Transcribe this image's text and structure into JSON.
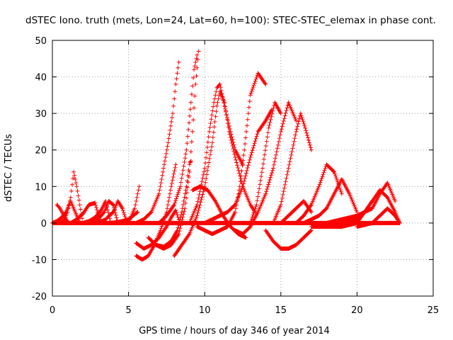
{
  "chart_data": {
    "type": "scatter",
    "title": "dSTEC Iono. truth (mets, Lon=24, Lat=60, h=100): STEC-STEC_elemax in phase cont.",
    "xlabel": "GPS time / hours of day 346 of year 2014",
    "ylabel": "dSTEC  / TECUs",
    "xlim": [
      0,
      25
    ],
    "ylim": [
      -20,
      50
    ],
    "x_ticks": [
      0,
      5,
      10,
      15,
      20,
      25
    ],
    "y_ticks": [
      -20,
      -10,
      0,
      10,
      20,
      30,
      40,
      50
    ],
    "x_tick_labels": [
      "0",
      "5",
      "10",
      "15",
      "20",
      "25"
    ],
    "y_tick_labels": [
      "-20",
      "-10",
      "0",
      "10",
      "20",
      "30",
      "40",
      "50"
    ],
    "grid": true,
    "marker": "+",
    "color": "#ff0000",
    "series": [
      {
        "x": [
          0.0,
          0.3,
          0.6,
          0.9,
          1.2,
          1.5,
          1.8
        ],
        "y": [
          0,
          0.5,
          1.5,
          3,
          6,
          3,
          0
        ]
      },
      {
        "x": [
          0.5,
          0.8,
          1.0,
          1.2,
          1.4,
          1.6,
          1.8,
          2.0
        ],
        "y": [
          0,
          1,
          3,
          7,
          14,
          10,
          5,
          0
        ]
      },
      {
        "x": [
          0.3,
          0.5,
          0.7,
          0.9,
          1.1
        ],
        "y": [
          5,
          4,
          2.5,
          1,
          0
        ]
      },
      {
        "x": [
          1.2,
          1.6,
          2.0,
          2.4,
          2.8,
          3.1
        ],
        "y": [
          0,
          1,
          2.5,
          5,
          5.5,
          1
        ]
      },
      {
        "x": [
          2.0,
          2.4,
          2.8,
          3.2,
          3.5,
          3.8
        ],
        "y": [
          0,
          0.5,
          1.5,
          3.5,
          6,
          0.5
        ]
      },
      {
        "x": [
          2.6,
          3.0,
          3.4,
          3.7,
          4.0,
          4.3
        ],
        "y": [
          0,
          1,
          3,
          6,
          5,
          0
        ]
      },
      {
        "x": [
          3.0,
          3.5,
          4.0,
          4.3,
          4.6,
          4.9
        ],
        "y": [
          0,
          1,
          3,
          6,
          4,
          0
        ]
      },
      {
        "x": [
          4.5,
          4.8,
          5.1,
          5.4,
          5.6,
          5.7
        ],
        "y": [
          0,
          0.3,
          1,
          4,
          8,
          10
        ]
      },
      {
        "x": [
          3.8,
          4.2,
          4.6,
          5.0,
          5.3,
          5.6
        ],
        "y": [
          0,
          0.2,
          0.5,
          1,
          2,
          3
        ]
      },
      {
        "x": [
          5.5,
          6.0,
          6.5,
          7.0,
          7.5,
          7.8,
          8.1,
          8.3
        ],
        "y": [
          -5.5,
          -7,
          -6,
          -4,
          -1,
          1.5,
          3.5,
          1
        ]
      },
      {
        "x": [
          5.5,
          5.9,
          6.3,
          6.7,
          7.1,
          7.5,
          7.8,
          8.1
        ],
        "y": [
          -9,
          -10,
          -9,
          -6,
          -2,
          3,
          10,
          16
        ]
      },
      {
        "x": [
          5.5,
          6.0,
          6.5,
          7.0,
          7.3,
          7.6,
          7.9,
          8.1,
          8.3
        ],
        "y": [
          0,
          1,
          3,
          8,
          15,
          22,
          30,
          38,
          44
        ]
      },
      {
        "x": [
          6.3,
          6.8,
          7.3,
          7.8,
          8.3,
          8.7,
          9.0,
          9.2,
          9.4,
          9.6
        ],
        "y": [
          -4,
          -6,
          -7,
          -6,
          -3,
          4,
          14,
          25,
          38,
          47
        ]
      },
      {
        "x": [
          6.8,
          7.3,
          7.8,
          8.2,
          8.5,
          8.8,
          9.0,
          9.1
        ],
        "y": [
          -6,
          -6.5,
          -5,
          -2,
          3,
          10,
          16,
          17
        ]
      },
      {
        "x": [
          7.0,
          7.5,
          8.0,
          8.4,
          8.8,
          9.1,
          9.3,
          9.5
        ],
        "y": [
          0,
          2,
          5,
          10,
          20,
          33,
          42,
          46
        ]
      },
      {
        "x": [
          8.0,
          8.5,
          9.0,
          9.5,
          10.0,
          10.5,
          10.8,
          11.0,
          11.3,
          11.6,
          12.0,
          12.5,
          13.0,
          13.3
        ],
        "y": [
          -9,
          -6,
          -3,
          2,
          10,
          22,
          32,
          36,
          33,
          25,
          18,
          10,
          5,
          3
        ]
      },
      {
        "x": [
          9.0,
          9.5,
          10.0,
          10.3,
          10.6,
          10.8,
          11.0,
          11.3,
          11.7,
          12.0,
          12.5
        ],
        "y": [
          0,
          5,
          15,
          25,
          33,
          37,
          38,
          32,
          25,
          20,
          16
        ]
      },
      {
        "x": [
          9.2,
          9.7,
          10.2,
          10.7,
          11.2,
          11.7,
          12.2,
          12.7
        ],
        "y": [
          9,
          10,
          9,
          6,
          2,
          -1,
          -3,
          -4
        ]
      },
      {
        "x": [
          9.5,
          10.0,
          10.5,
          11.0,
          11.5,
          12.0,
          12.3,
          12.6,
          13.0,
          13.5,
          14.0
        ],
        "y": [
          -1,
          -2,
          -3,
          -2,
          -1,
          3,
          10,
          20,
          35,
          41,
          38
        ]
      },
      {
        "x": [
          10.0,
          10.5,
          11.0,
          11.5,
          12.0,
          12.5,
          13.0,
          13.5,
          14.0,
          14.4
        ],
        "y": [
          0,
          1,
          2,
          3,
          5,
          10,
          18,
          25,
          28,
          31
        ]
      },
      {
        "x": [
          12.0,
          12.5,
          13.0,
          13.5,
          14.0,
          14.5,
          15.0,
          15.5,
          16.0
        ],
        "y": [
          -2,
          -3,
          -1,
          3,
          8,
          15,
          25,
          33,
          28
        ]
      },
      {
        "x": [
          13.0,
          13.4,
          13.8,
          14.2,
          14.6,
          15.0
        ],
        "y": [
          0,
          5,
          15,
          26,
          33,
          30
        ]
      },
      {
        "x": [
          14.0,
          14.5,
          15.0,
          15.5,
          16.0,
          16.5,
          17.0
        ],
        "y": [
          -2,
          -5,
          -7,
          -7,
          -6,
          -4,
          -2
        ]
      },
      {
        "x": [
          14.5,
          15.0,
          15.5,
          16.0,
          16.3,
          16.6,
          17.0
        ],
        "y": [
          0,
          5,
          15,
          25,
          30,
          26,
          20
        ]
      },
      {
        "x": [
          15.0,
          15.5,
          16.0,
          16.5,
          17.0
        ],
        "y": [
          0,
          2,
          4,
          6,
          3
        ]
      },
      {
        "x": [
          16.0,
          16.5,
          17.0,
          17.5,
          18.0,
          18.5,
          19.0
        ],
        "y": [
          0,
          2,
          5,
          10,
          16,
          14,
          8
        ]
      },
      {
        "x": [
          16.5,
          17.0,
          17.5,
          18.0,
          18.5,
          19.0,
          19.5,
          20.0
        ],
        "y": [
          0,
          1,
          2,
          4,
          8,
          12,
          8,
          3
        ]
      },
      {
        "x": [
          17.0,
          18.0,
          19.0,
          20.0,
          20.5,
          21.0
        ],
        "y": [
          -1,
          -1,
          -1,
          0,
          3,
          6
        ]
      },
      {
        "x": [
          18.0,
          19.0,
          20.0,
          21.0,
          21.5,
          22.0,
          22.5
        ],
        "y": [
          0,
          1,
          2,
          4,
          8,
          11,
          6
        ]
      },
      {
        "x": [
          19.0,
          20.0,
          20.5,
          21.0,
          21.5,
          22.0,
          22.5,
          22.8
        ],
        "y": [
          0,
          1,
          3,
          6,
          9,
          7,
          3,
          0
        ]
      },
      {
        "x": [
          20.0,
          21.0,
          21.5,
          22.0,
          22.5,
          22.8
        ],
        "y": [
          -1,
          0,
          2,
          4,
          2,
          0
        ]
      },
      {
        "x": [
          0.0,
          3.0,
          6.0,
          9.0,
          12.0,
          15.0,
          18.0,
          21.0,
          22.8
        ],
        "y": [
          0,
          0,
          0,
          0,
          0,
          0,
          0,
          0,
          0
        ]
      }
    ]
  }
}
